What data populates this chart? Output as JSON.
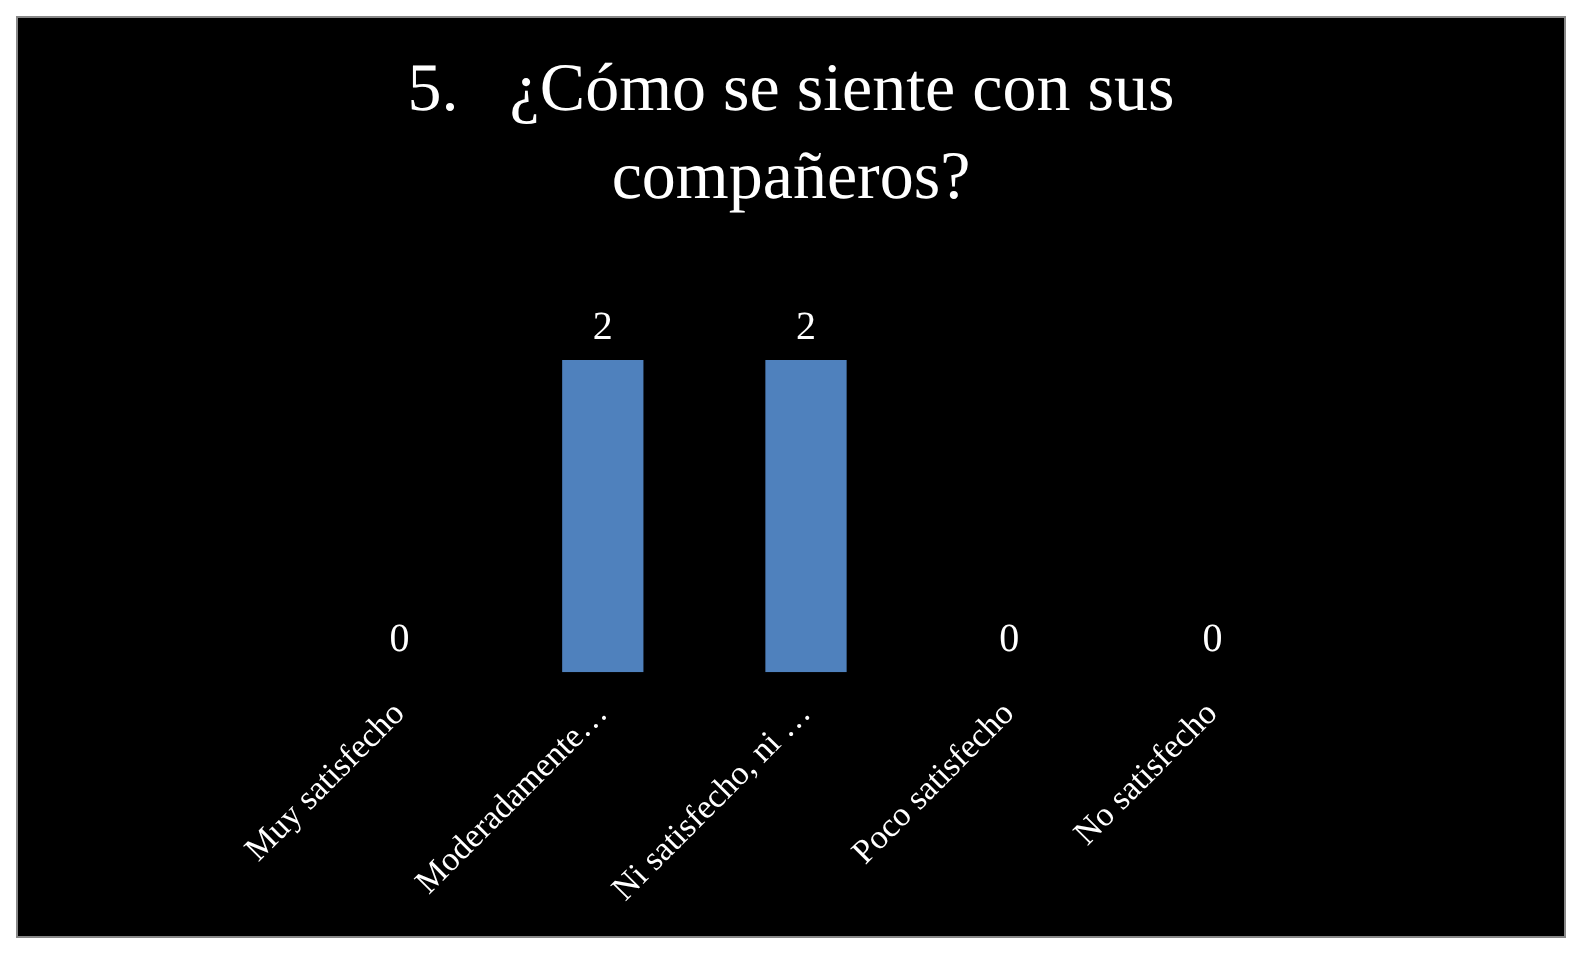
{
  "chart_data": {
    "type": "bar",
    "title": "5.   ¿Cómo se siente con sus compañeros?",
    "categories": [
      "Muy satisfecho",
      "Moderadamente…",
      "Ni satisfecho, ni …",
      "Poco satisfecho",
      "No satisfecho"
    ],
    "values": [
      0,
      2,
      2,
      0,
      0
    ],
    "color": "#4f81bd",
    "data_labels": true
  }
}
